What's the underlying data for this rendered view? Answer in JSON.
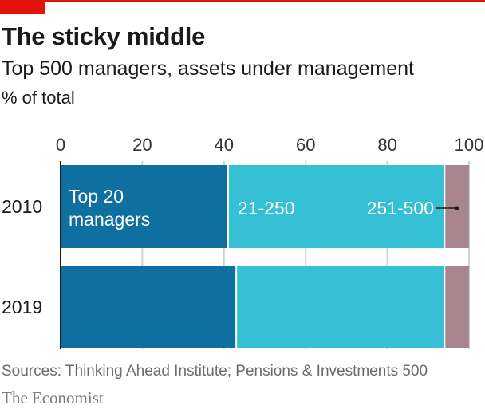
{
  "header": {
    "title": "The sticky middle",
    "subtitle": "Top 500 managers, assets under management",
    "unit": "% of total"
  },
  "footer": {
    "source": "Sources: Thinking Ahead Institute; Pensions & Investments 500",
    "brand": "The Economist"
  },
  "colors": {
    "accent": "#e3120b",
    "top20": "#0f6fa0",
    "mid": "#36c0d6",
    "rest": "#a9868f",
    "grid": "#c9d3d8",
    "axis": "#1a1a1a"
  },
  "chart_data": {
    "type": "bar",
    "orientation": "horizontal",
    "stacked": true,
    "title": "The sticky middle",
    "subtitle": "Top 500 managers, assets under management",
    "unit": "% of total",
    "categories": [
      "2010",
      "2019"
    ],
    "xlim": [
      0,
      100
    ],
    "xticks": [
      "0",
      "20",
      "40",
      "60",
      "80",
      "100"
    ],
    "grid": true,
    "series": [
      {
        "name": "Top 20 managers",
        "label_lines": [
          "Top 20",
          "managers"
        ],
        "values": [
          41,
          43
        ]
      },
      {
        "name": "21-250",
        "label_lines": [
          "21-250"
        ],
        "values": [
          53,
          51
        ]
      },
      {
        "name": "251-500",
        "label_lines": [
          "251-500"
        ],
        "values": [
          6,
          6
        ]
      }
    ]
  }
}
